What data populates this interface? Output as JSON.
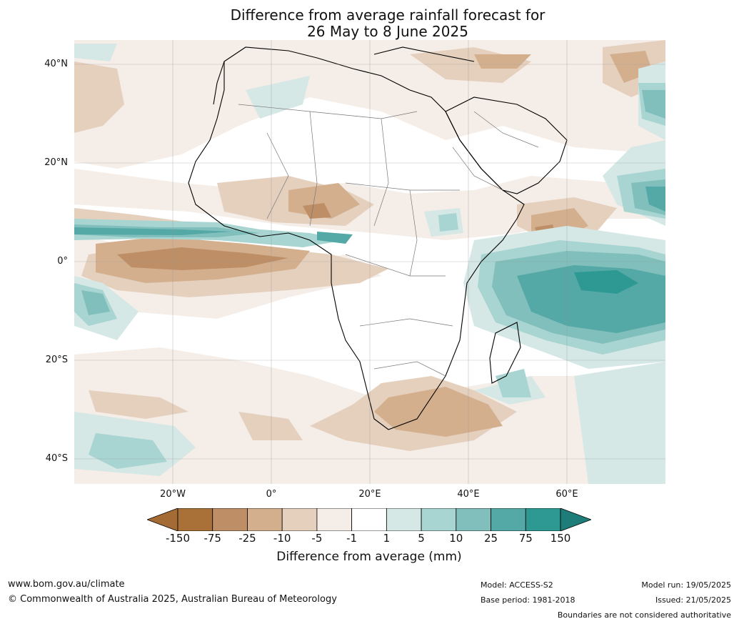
{
  "title_line1": "Difference from average rainfall forecast for",
  "title_line2": "26 May to 8 June 2025",
  "map": {
    "lat_labels": [
      "40°N",
      "20°N",
      "0°",
      "20°S",
      "40°S"
    ],
    "lon_labels": [
      "20°W",
      "0°",
      "20°E",
      "40°E",
      "60°E"
    ],
    "extent": {
      "lon_min": -40,
      "lon_max": 80,
      "lat_min": -45,
      "lat_max": 45
    }
  },
  "colorbar": {
    "label": "Difference from average (mm)",
    "ticks": [
      "-150",
      "-75",
      "-25",
      "-10",
      "-5",
      "-1",
      "1",
      "5",
      "10",
      "25",
      "75",
      "150"
    ],
    "colors": [
      "#a46b35",
      "#a97138",
      "#be8f66",
      "#d3af8e",
      "#e5d0be",
      "#f5ede7",
      "#ffffff",
      "#d5e8e6",
      "#a8d4d1",
      "#80bfbc",
      "#54a8a5",
      "#2e9893",
      "#1e7d78"
    ]
  },
  "footer": {
    "url": "www.bom.gov.au/climate",
    "copyright": "© Commonwealth of Australia 2025, Australian Bureau of Meteorology",
    "model": "Model: ACCESS-S2",
    "base_period": "Base period: 1981-2018",
    "model_run": "Model run: 19/05/2025",
    "issued": "Issued: 21/05/2025",
    "disclaimer": "Boundaries are not considered authoritative"
  }
}
